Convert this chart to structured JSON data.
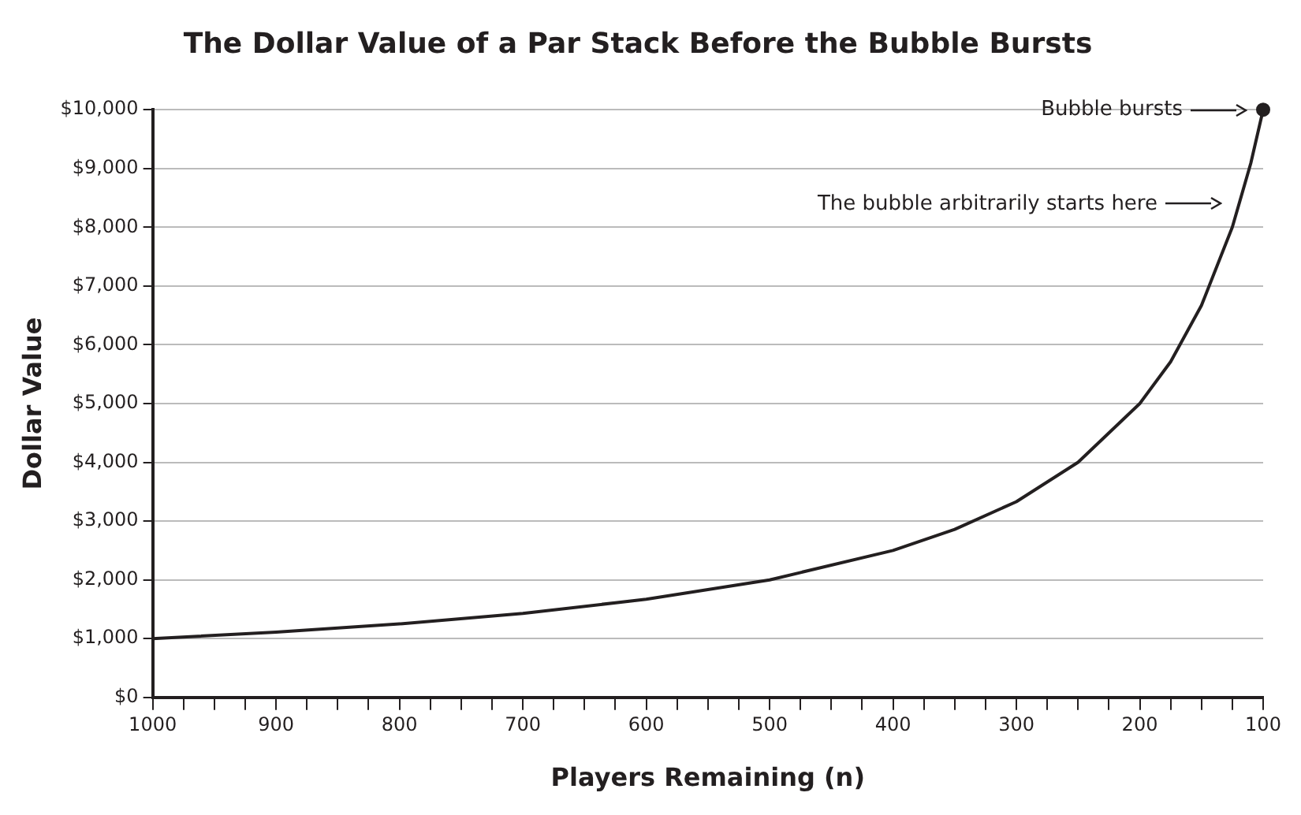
{
  "chart_data": {
    "type": "line",
    "title": "The Dollar Value of a Par Stack Before the Bubble Bursts",
    "xlabel": "Players Remaining (n)",
    "ylabel": "Dollar Value",
    "x": [
      1000,
      900,
      800,
      700,
      600,
      500,
      400,
      350,
      300,
      250,
      200,
      175,
      150,
      125,
      110,
      100
    ],
    "series": [
      {
        "color": "#231f20",
        "values": [
          1000,
          1110,
          1250,
          1430,
          1670,
          2000,
          2500,
          2860,
          3330,
          4000,
          5000,
          5710,
          6670,
          8000,
          9090,
          10000
        ]
      },
      {
        "type": "scatter",
        "color": "#231f20",
        "x": [
          100
        ],
        "values": [
          10000
        ],
        "marker": "circle"
      }
    ],
    "xlim": [
      1000,
      100
    ],
    "xticks": [
      1000,
      {
        "value": 975,
        "label": null
      },
      {
        "value": 950,
        "label": null
      },
      {
        "value": 925,
        "label": null
      },
      900,
      {
        "value": 875,
        "label": null
      },
      {
        "value": 850,
        "label": null
      },
      {
        "value": 825,
        "label": null
      },
      800,
      {
        "value": 775,
        "label": null
      },
      {
        "value": 750,
        "label": null
      },
      {
        "value": 725,
        "label": null
      },
      700,
      {
        "value": 675,
        "label": null
      },
      {
        "value": 650,
        "label": null
      },
      {
        "value": 625,
        "label": null
      },
      600,
      {
        "value": 575,
        "label": null
      },
      {
        "value": 550,
        "label": null
      },
      {
        "value": 525,
        "label": null
      },
      500,
      {
        "value": 475,
        "label": null
      },
      {
        "value": 450,
        "label": null
      },
      {
        "value": 425,
        "label": null
      },
      400,
      {
        "value": 375,
        "label": null
      },
      {
        "value": 350,
        "label": null
      },
      {
        "value": 325,
        "label": null
      },
      300,
      {
        "value": 275,
        "label": null
      },
      {
        "value": 250,
        "label": null
      },
      {
        "value": 225,
        "label": null
      },
      200,
      {
        "value": 175,
        "label": null
      },
      {
        "value": 150,
        "label": null
      },
      {
        "value": 125,
        "label": null
      },
      100
    ],
    "ylim": [
      0,
      10000
    ],
    "yticks": [
      {
        "value": 0,
        "label": "$0"
      },
      {
        "value": 1000,
        "label": "$1,000"
      },
      {
        "value": 2000,
        "label": "$2,000"
      },
      {
        "value": 3000,
        "label": "$3,000"
      },
      {
        "value": 4000,
        "label": "$4,000"
      },
      {
        "value": 5000,
        "label": "$5,000"
      },
      {
        "value": 6000,
        "label": "$6,000"
      },
      {
        "value": 7000,
        "label": "$7,000"
      },
      {
        "value": 8000,
        "label": "$8,000"
      },
      {
        "value": 9000,
        "label": "$9,000"
      },
      {
        "value": 10000,
        "label": "$10,000"
      }
    ],
    "grid": "y",
    "legend": false,
    "line_style": "solid",
    "marker": "none",
    "annotations": [
      "Bubble bursts",
      "The bubble arbitrarily starts here"
    ]
  }
}
